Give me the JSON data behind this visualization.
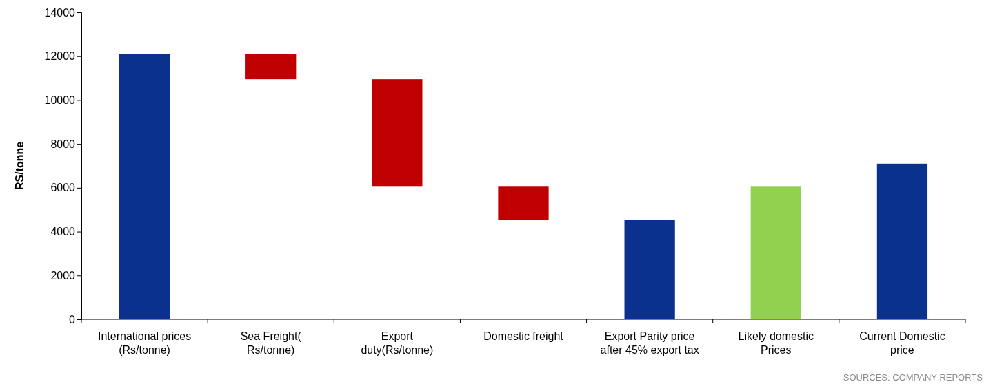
{
  "chart_data": {
    "type": "bar",
    "ylabel": "RS/tonne",
    "categories": [
      "International  prices\n(Rs/tonne)",
      "Sea Freight(\nRs/tonne)",
      "Export\nduty(Rs/tonne)",
      "Domestic freight",
      "Export Parity price\nafter 45% export tax",
      "Likely domestic\nPrices",
      "Current Domestic\nprice"
    ],
    "values": [
      12100,
      1150,
      4900,
      1530,
      4520,
      6050,
      7100
    ],
    "base": [
      0,
      10950,
      6050,
      4520,
      0,
      0,
      0
    ],
    "colors": [
      "#0a318d",
      "#c00000",
      "#c00000",
      "#c00000",
      "#0a318d",
      "#92d050",
      "#0a318d"
    ],
    "ylim": [
      0,
      14000
    ],
    "yticks": [
      0,
      2000,
      4000,
      6000,
      8000,
      10000,
      12000,
      14000
    ],
    "grid": false,
    "annotations": [
      "SOURCES: COMPANY REPORTS"
    ]
  }
}
